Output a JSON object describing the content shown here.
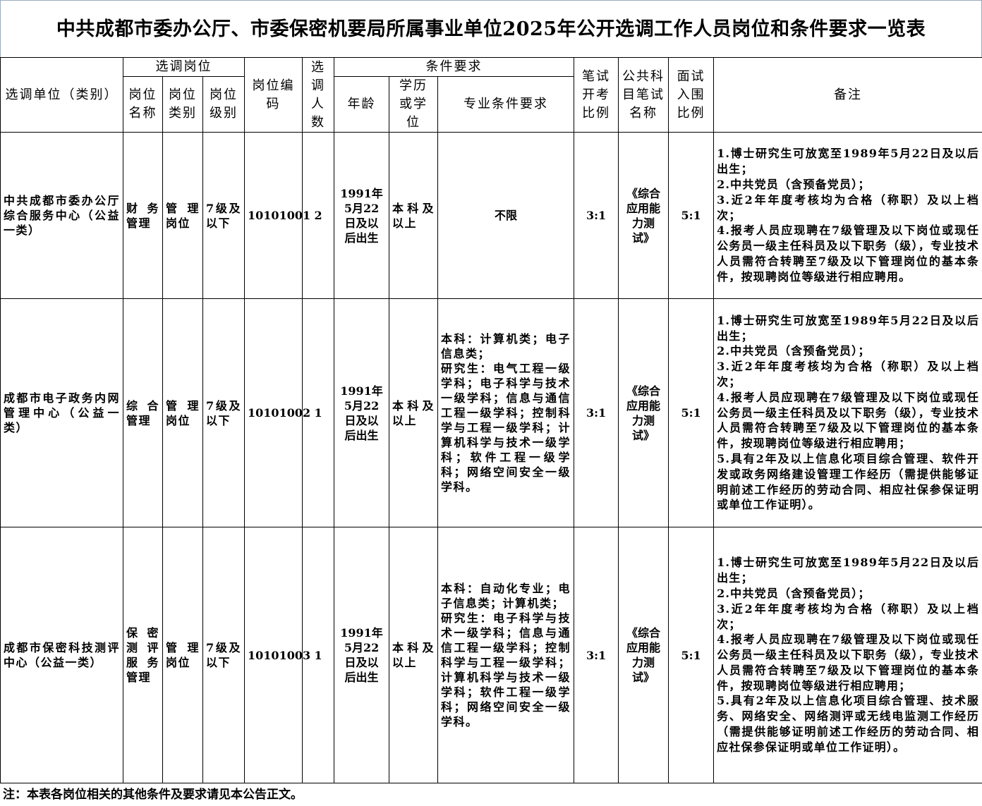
{
  "title": "中共成都市委办公厅、市委保密机要局所属事业单位2025年公开选调工作人员岗位和条件要求一览表",
  "headers": {
    "unit": "选调单位（类别）",
    "position_group": "选调岗位",
    "pos_name": "岗位名称",
    "pos_type": "岗位类别",
    "pos_level": "岗位级别",
    "pos_code": "岗位编码",
    "count": "选调人数",
    "cond_group": "条件要求",
    "age": "年龄",
    "edu": "学历或学位",
    "major": "专业条件要求",
    "written_ratio": "笔试开考比例",
    "subject": "公共科目笔试名称",
    "interview_ratio": "面试入围比例",
    "remarks": "备注"
  },
  "rows": [
    {
      "unit": "中共成都市委办公厅综合服务中心（公益一类）",
      "name": "财务管理",
      "type": "管理岗位",
      "level": "7级及以下",
      "code": "10101001",
      "count": "2",
      "age": "1991年5月22日及以后出生",
      "edu": "本科及以上",
      "major": "不限",
      "written_ratio": "3:1",
      "subject": "《综合应用能力测试》",
      "interview_ratio": "5:1",
      "remarks": [
        "1.博士研究生可放宽至1989年5月22日及以后出生；",
        "2.中共党员（含预备党员）；",
        "3.近2年年度考核均为合格（称职）及以上档次；",
        "4.报考人员应现聘在7级管理及以下岗位或现任公务员一级主任科员及以下职务（级），专业技术人员需符合转聘至7级及以下管理岗位的基本条件，按现聘岗位等级进行相应聘用。"
      ]
    },
    {
      "unit": "成都市电子政务内网管理中心（公益一类）",
      "name": "综合管理",
      "type": "管理岗位",
      "level": "7级及以下",
      "code": "10101002",
      "count": "1",
      "age": "1991年5月22日及以后出生",
      "edu": "本科及以上",
      "major": "本科：计算机类；电子信息类；\n研究生：电气工程一级学科；电子科学与技术一级学科；信息与通信工程一级学科；控制科学与工程一级学科；计算机科学与技术一级学科；软件工程一级学科；网络空间安全一级学科。",
      "written_ratio": "3:1",
      "subject": "《综合应用能力测试》",
      "interview_ratio": "5:1",
      "remarks": [
        "1.博士研究生可放宽至1989年5月22日及以后出生；",
        "2.中共党员（含预备党员）；",
        "3.近2年年度考核均为合格（称职）及以上档次；",
        "4.报考人员应现聘在7级管理及以下岗位或现任公务员一级主任科员及以下职务（级），专业技术人员需符合转聘至7级及以下管理岗位的基本条件，按现聘岗位等级进行相应聘用；",
        "5.具有2年及以上信息化项目综合管理、软件开发或政务网络建设管理工作经历（需提供能够证明前述工作经历的劳动合同、相应社保参保证明或单位工作证明）。"
      ]
    },
    {
      "unit": "成都市保密科技测评中心（公益一类）",
      "name": "保密测评服务管理",
      "type": "管理岗位",
      "level": "7级及以下",
      "code": "10101003",
      "count": "1",
      "age": "1991年5月22日及以后出生",
      "edu": "本科及以上",
      "major": "本科：自动化专业；电子信息类；计算机类；\n研究生：电子科学与技术一级学科；信息与通信工程一级学科；控制科学与工程一级学科；计算机科学与技术一级学科；软件工程一级学科；网络空间安全一级学科。",
      "written_ratio": "3:1",
      "subject": "《综合应用能力测试》",
      "interview_ratio": "5:1",
      "remarks": [
        "1.博士研究生可放宽至1989年5月22日及以后出生；",
        "2.中共党员（含预备党员）；",
        "3.近2年年度考核均为合格（称职）及以上档次；",
        "4.报考人员应现聘在7级管理及以下岗位或现任公务员一级主任科员及以下职务（级），专业技术人员需符合转聘至7级及以下管理岗位的基本条件，按现聘岗位等级进行相应聘用；",
        "5.具有2年及以上信息化项目综合管理、技术服务、网络安全、网络测评或无线电监测工作经历（需提供能够证明前述工作经历的劳动合同、相应社保参保证明或单位工作证明）。"
      ]
    }
  ],
  "footer": "注：本表各岗位相关的其他条件及要求请见本公告正文。"
}
